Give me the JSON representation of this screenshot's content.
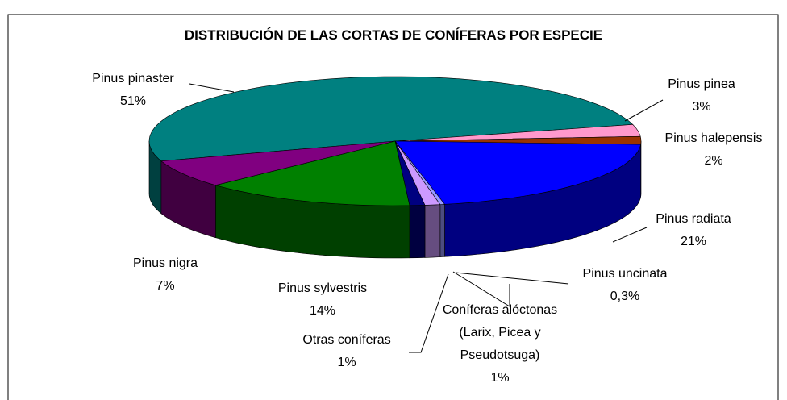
{
  "chart_data": {
    "type": "pie3d",
    "title": "DISTRIBUCIÓN DE LAS CORTAS DE CONÍFERAS POR ESPECIE",
    "categories": [
      "Pinus pinaster",
      "Pinus pinea",
      "Pinus halepensis",
      "Pinus radiata",
      "Pinus uncinata",
      "Coníferas alóctonas (Larix, Picea y Pseudotsuga)",
      "Otras coníferas",
      "Pinus sylvestris",
      "Pinus nigra"
    ],
    "values": [
      51,
      3,
      2,
      21,
      0.3,
      1,
      1,
      14,
      7
    ],
    "value_labels": [
      "51%",
      "3%",
      "2%",
      "21%",
      "0,3%",
      "1%",
      "1%",
      "14%",
      "7%"
    ],
    "colors": [
      "#008080",
      "#FF99CC",
      "#993300",
      "#0000FF",
      "#9999FF",
      "#CC99FF",
      "#000080",
      "#008000",
      "#800080"
    ]
  }
}
